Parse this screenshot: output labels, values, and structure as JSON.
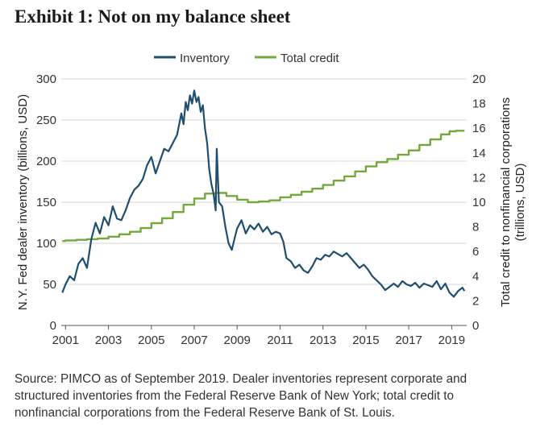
{
  "header": {
    "title": "Exhibit 1: Not on my balance sheet"
  },
  "footer": {
    "source": "Source: PIMCO as of September 2019. Dealer inventories represent corporate and structured inventories from the Federal Reserve Bank of New York; total credit to nonfinancial corporations from the Federal Reserve Bank of St. Louis."
  },
  "colors": {
    "inventory": "#1f4e6e",
    "total_credit": "#74a83c",
    "grid": "#d4d4d4",
    "axis": "#555555"
  },
  "chart_data": {
    "type": "line",
    "title": "Exhibit 1: Not on my balance sheet",
    "xlabel": "",
    "ylabel_left": "N.Y. Fed dealer inventory (billions, USD)",
    "ylabel_right_line1": "Total credit to nonfinancial corporations",
    "ylabel_right_line2": "(trillions, USD)",
    "x_ticks": [
      2001,
      2003,
      2005,
      2007,
      2009,
      2011,
      2013,
      2015,
      2017,
      2019
    ],
    "xlim": [
      2000.8,
      2019.7
    ],
    "ylim_left": [
      0,
      300
    ],
    "y_ticks_left": [
      0,
      50,
      100,
      150,
      200,
      250,
      300
    ],
    "ylim_right": [
      0,
      20
    ],
    "y_ticks_right": [
      0,
      2,
      4,
      6,
      8,
      10,
      12,
      14,
      16,
      18,
      20
    ],
    "legend": [
      "Inventory",
      "Total credit"
    ],
    "grid": true,
    "legend_position": "top-center",
    "series": [
      {
        "name": "Inventory",
        "axis": "left",
        "points": [
          [
            2000.85,
            40
          ],
          [
            2001.0,
            50
          ],
          [
            2001.2,
            60
          ],
          [
            2001.4,
            55
          ],
          [
            2001.6,
            75
          ],
          [
            2001.8,
            82
          ],
          [
            2002.0,
            70
          ],
          [
            2002.2,
            105
          ],
          [
            2002.4,
            125
          ],
          [
            2002.6,
            112
          ],
          [
            2002.8,
            132
          ],
          [
            2003.0,
            122
          ],
          [
            2003.2,
            145
          ],
          [
            2003.4,
            130
          ],
          [
            2003.6,
            128
          ],
          [
            2003.8,
            140
          ],
          [
            2004.0,
            155
          ],
          [
            2004.2,
            165
          ],
          [
            2004.4,
            170
          ],
          [
            2004.6,
            178
          ],
          [
            2004.8,
            195
          ],
          [
            2005.0,
            205
          ],
          [
            2005.2,
            185
          ],
          [
            2005.4,
            200
          ],
          [
            2005.6,
            215
          ],
          [
            2005.8,
            212
          ],
          [
            2006.0,
            222
          ],
          [
            2006.2,
            232
          ],
          [
            2006.4,
            258
          ],
          [
            2006.5,
            245
          ],
          [
            2006.6,
            272
          ],
          [
            2006.7,
            262
          ],
          [
            2006.8,
            280
          ],
          [
            2006.9,
            270
          ],
          [
            2007.0,
            286
          ],
          [
            2007.1,
            272
          ],
          [
            2007.2,
            278
          ],
          [
            2007.3,
            260
          ],
          [
            2007.4,
            268
          ],
          [
            2007.5,
            240
          ],
          [
            2007.6,
            222
          ],
          [
            2007.7,
            190
          ],
          [
            2007.8,
            172
          ],
          [
            2007.9,
            160
          ],
          [
            2008.0,
            140
          ],
          [
            2008.05,
            215
          ],
          [
            2008.15,
            150
          ],
          [
            2008.3,
            145
          ],
          [
            2008.45,
            120
          ],
          [
            2008.6,
            100
          ],
          [
            2008.75,
            92
          ],
          [
            2008.9,
            108
          ],
          [
            2009.0,
            118
          ],
          [
            2009.2,
            128
          ],
          [
            2009.4,
            112
          ],
          [
            2009.6,
            122
          ],
          [
            2009.8,
            117
          ],
          [
            2010.0,
            124
          ],
          [
            2010.2,
            114
          ],
          [
            2010.4,
            120
          ],
          [
            2010.6,
            111
          ],
          [
            2010.8,
            114
          ],
          [
            2011.0,
            112
          ],
          [
            2011.15,
            102
          ],
          [
            2011.3,
            82
          ],
          [
            2011.5,
            78
          ],
          [
            2011.7,
            70
          ],
          [
            2011.9,
            74
          ],
          [
            2012.1,
            67
          ],
          [
            2012.3,
            64
          ],
          [
            2012.5,
            72
          ],
          [
            2012.7,
            82
          ],
          [
            2012.9,
            80
          ],
          [
            2013.1,
            86
          ],
          [
            2013.3,
            84
          ],
          [
            2013.5,
            90
          ],
          [
            2013.7,
            87
          ],
          [
            2013.9,
            84
          ],
          [
            2014.1,
            88
          ],
          [
            2014.3,
            82
          ],
          [
            2014.5,
            76
          ],
          [
            2014.7,
            70
          ],
          [
            2014.9,
            74
          ],
          [
            2015.1,
            68
          ],
          [
            2015.3,
            60
          ],
          [
            2015.5,
            55
          ],
          [
            2015.7,
            50
          ],
          [
            2015.9,
            43
          ],
          [
            2016.1,
            47
          ],
          [
            2016.3,
            51
          ],
          [
            2016.5,
            47
          ],
          [
            2016.7,
            54
          ],
          [
            2016.9,
            50
          ],
          [
            2017.1,
            48
          ],
          [
            2017.3,
            52
          ],
          [
            2017.5,
            46
          ],
          [
            2017.7,
            51
          ],
          [
            2017.9,
            49
          ],
          [
            2018.1,
            47
          ],
          [
            2018.3,
            54
          ],
          [
            2018.5,
            44
          ],
          [
            2018.7,
            51
          ],
          [
            2018.9,
            40
          ],
          [
            2019.1,
            35
          ],
          [
            2019.3,
            42
          ],
          [
            2019.5,
            46
          ],
          [
            2019.6,
            42
          ]
        ]
      },
      {
        "name": "Total credit",
        "axis": "right",
        "points": [
          [
            2000.85,
            6.85
          ],
          [
            2001.0,
            6.9
          ],
          [
            2001.5,
            6.95
          ],
          [
            2002.0,
            7.0
          ],
          [
            2002.5,
            7.05
          ],
          [
            2003.0,
            7.2
          ],
          [
            2003.5,
            7.4
          ],
          [
            2004.0,
            7.6
          ],
          [
            2004.5,
            7.9
          ],
          [
            2005.0,
            8.3
          ],
          [
            2005.5,
            8.7
          ],
          [
            2006.0,
            9.2
          ],
          [
            2006.5,
            9.8
          ],
          [
            2007.0,
            10.3
          ],
          [
            2007.5,
            10.7
          ],
          [
            2008.0,
            10.75
          ],
          [
            2008.5,
            10.5
          ],
          [
            2009.0,
            10.2
          ],
          [
            2009.5,
            10.0
          ],
          [
            2010.0,
            10.05
          ],
          [
            2010.5,
            10.15
          ],
          [
            2011.0,
            10.4
          ],
          [
            2011.5,
            10.6
          ],
          [
            2012.0,
            10.85
          ],
          [
            2012.5,
            11.1
          ],
          [
            2013.0,
            11.4
          ],
          [
            2013.5,
            11.75
          ],
          [
            2014.0,
            12.1
          ],
          [
            2014.5,
            12.5
          ],
          [
            2015.0,
            12.9
          ],
          [
            2015.5,
            13.25
          ],
          [
            2016.0,
            13.5
          ],
          [
            2016.5,
            13.85
          ],
          [
            2017.0,
            14.2
          ],
          [
            2017.5,
            14.65
          ],
          [
            2018.0,
            15.1
          ],
          [
            2018.5,
            15.5
          ],
          [
            2018.9,
            15.75
          ],
          [
            2019.2,
            15.8
          ],
          [
            2019.6,
            15.8
          ]
        ]
      }
    ]
  }
}
